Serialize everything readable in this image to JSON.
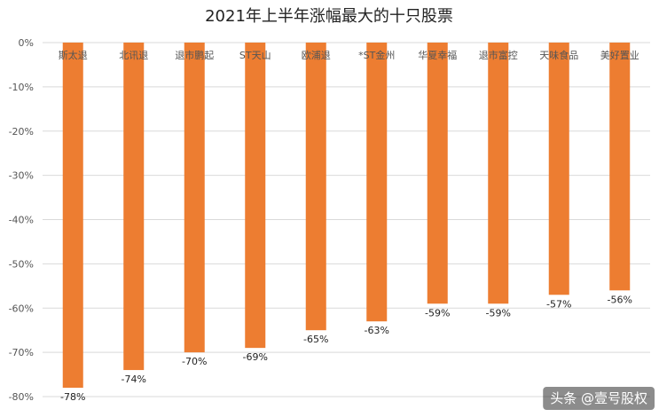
{
  "chart_data": {
    "type": "bar",
    "title": "2021年上半年涨幅最大的十只股票",
    "xlabel": "",
    "ylabel": "",
    "categories": [
      "斯太退",
      "北讯退",
      "退市鹏起",
      "ST天山",
      "欧浦退",
      "*ST金州",
      "华夏幸福",
      "退市富控",
      "天味食品",
      "美好置业"
    ],
    "values": [
      -78,
      -74,
      -70,
      -69,
      -65,
      -63,
      -59,
      -59,
      -57,
      -56
    ],
    "data_labels": [
      "-78%",
      "-74%",
      "-70%",
      "-69%",
      "-65%",
      "-63%",
      "-59%",
      "-59%",
      "-57%",
      "-56%"
    ],
    "ylim": [
      -80,
      0
    ],
    "yticks": [
      0,
      -10,
      -20,
      -30,
      -40,
      -50,
      -60,
      -70,
      -80
    ],
    "ytick_labels": [
      "0%",
      "-10%",
      "-20%",
      "-30%",
      "-40%",
      "-50%",
      "-60%",
      "-70%",
      "-80%"
    ],
    "bar_color": "#ED7D31",
    "grid": true,
    "legend": "none"
  },
  "watermark": {
    "text": "头条 @壹号股权"
  }
}
